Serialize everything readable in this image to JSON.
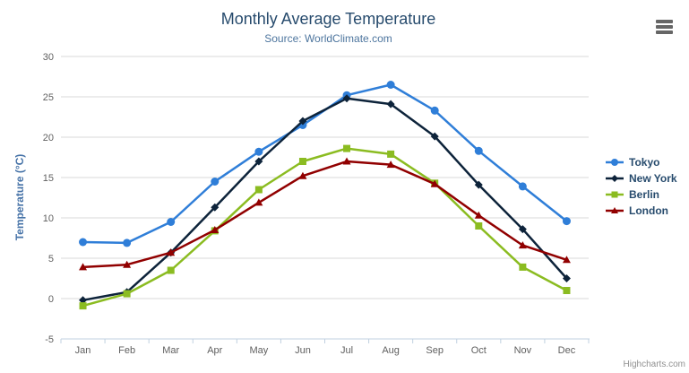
{
  "chart_data": {
    "type": "line",
    "title": "Monthly Average Temperature",
    "subtitle": "Source: WorldClimate.com",
    "xlabel": "",
    "ylabel": "Temperature (°C)",
    "categories": [
      "Jan",
      "Feb",
      "Mar",
      "Apr",
      "May",
      "Jun",
      "Jul",
      "Aug",
      "Sep",
      "Oct",
      "Nov",
      "Dec"
    ],
    "ylim": [
      -5,
      30
    ],
    "ytick_step": 5,
    "grid": true,
    "legend_position": "right",
    "series": [
      {
        "name": "Tokyo",
        "color": "#2f7ed8",
        "marker": "circle",
        "values": [
          7.0,
          6.9,
          9.5,
          14.5,
          18.2,
          21.5,
          25.2,
          26.5,
          23.3,
          18.3,
          13.9,
          9.6
        ]
      },
      {
        "name": "New York",
        "color": "#0d233a",
        "marker": "diamond",
        "values": [
          -0.2,
          0.8,
          5.7,
          11.3,
          17.0,
          22.0,
          24.8,
          24.1,
          20.1,
          14.1,
          8.6,
          2.5
        ]
      },
      {
        "name": "Berlin",
        "color": "#8bbc21",
        "marker": "square",
        "values": [
          -0.9,
          0.6,
          3.5,
          8.4,
          13.5,
          17.0,
          18.6,
          17.9,
          14.3,
          9.0,
          3.9,
          1.0
        ]
      },
      {
        "name": "London",
        "color": "#910000",
        "marker": "triangle",
        "values": [
          3.9,
          4.2,
          5.7,
          8.5,
          11.9,
          15.2,
          17.0,
          16.6,
          14.2,
          10.3,
          6.6,
          4.8
        ]
      }
    ]
  },
  "export_menu": {
    "tooltip": "chart context menu"
  },
  "credits": {
    "label": "Highcharts.com"
  }
}
